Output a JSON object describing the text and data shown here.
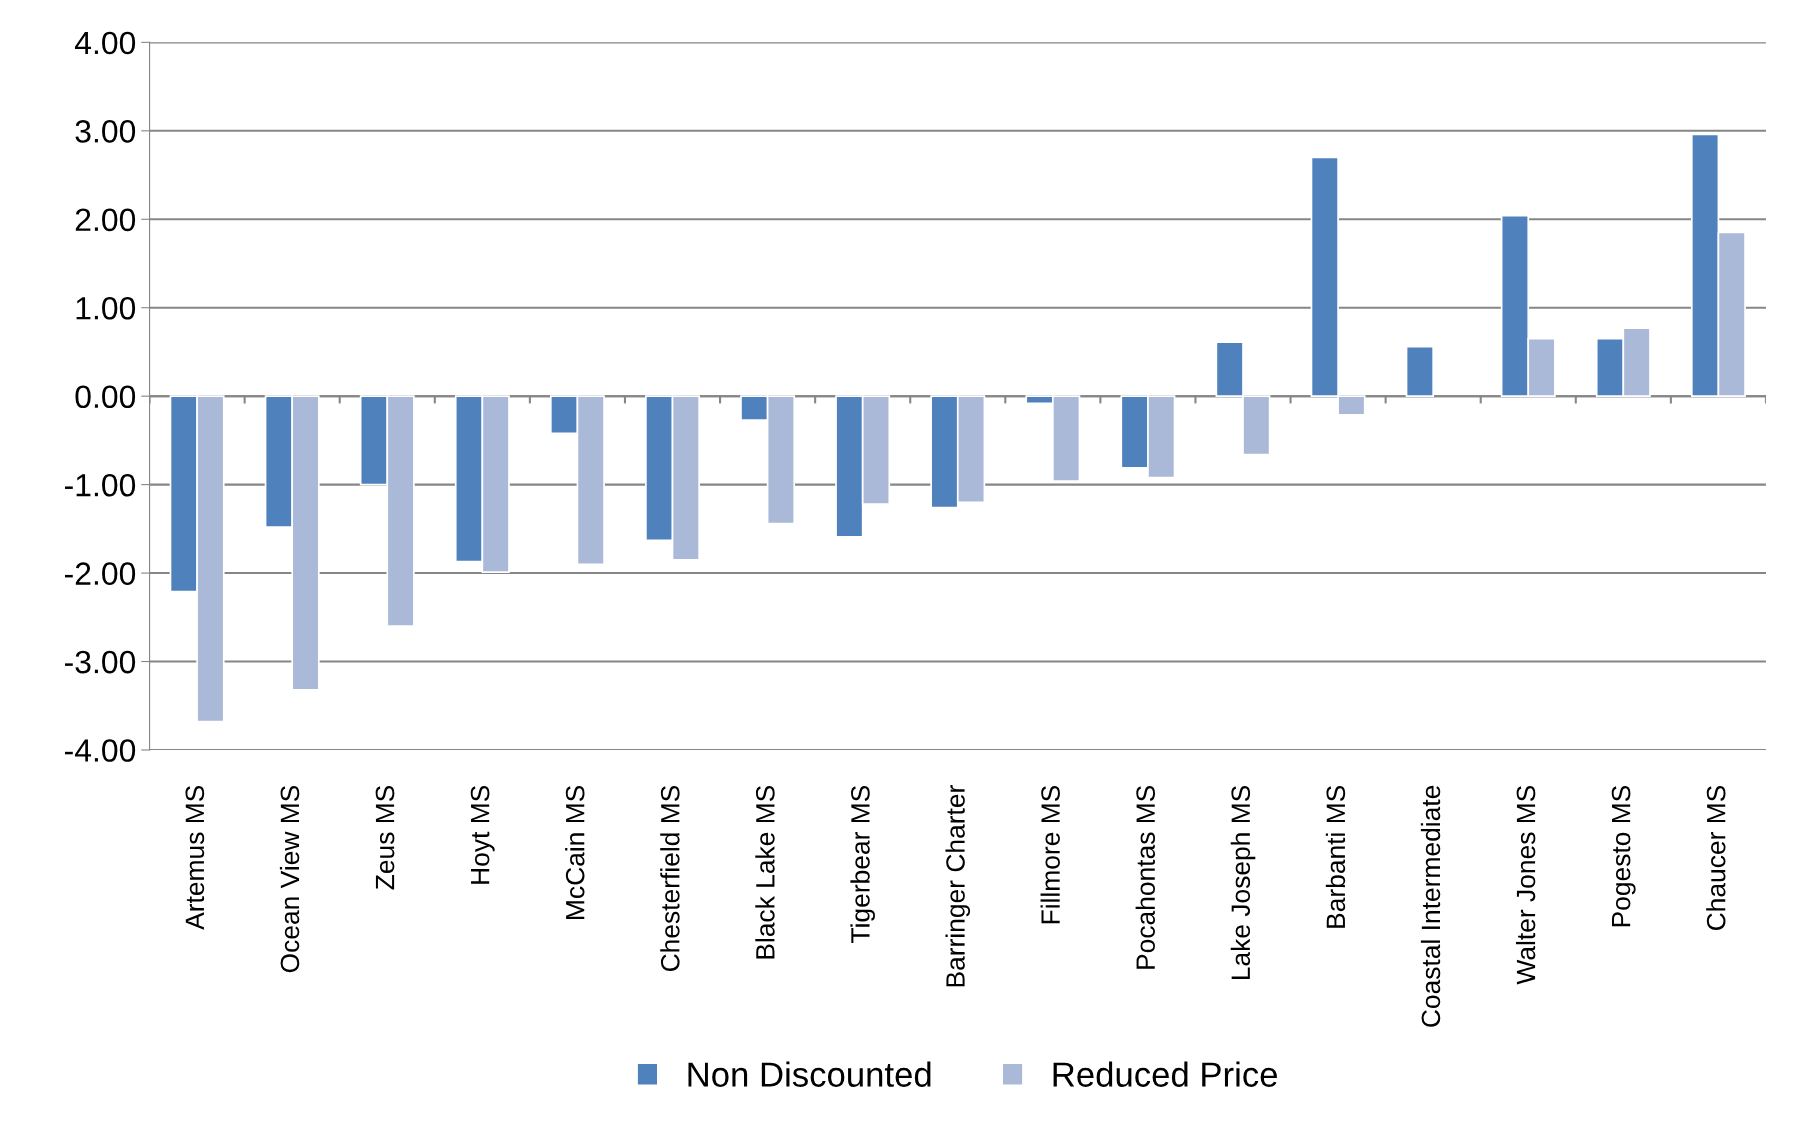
{
  "chart_data": {
    "type": "bar",
    "categories": [
      "Artemus MS",
      "Ocean View MS",
      "Zeus MS",
      "Hoyt MS",
      "McCain MS",
      "Chesterfield MS",
      "Black Lake MS",
      "Tigerbear MS",
      "Barringer Charter",
      "Fillmore MS",
      "Pocahontas MS",
      "Lake Joseph MS",
      "Barbanti MS",
      "Coastal Intermediate",
      "Walter Jones MS",
      "Pogesto MS",
      "Chaucer MS"
    ],
    "series": [
      {
        "name": "Non Discounted",
        "color": "#4f81bd",
        "values": [
          -2.21,
          -1.48,
          -1.0,
          -1.87,
          -0.42,
          -1.63,
          -0.27,
          -1.59,
          -1.26,
          -0.08,
          -0.81,
          0.61,
          2.7,
          0.56,
          2.04,
          0.65,
          2.96
        ]
      },
      {
        "name": "Reduced Price",
        "color": "#aab9d8",
        "values": [
          -3.68,
          -3.32,
          -2.6,
          -1.99,
          -1.9,
          -1.85,
          -1.44,
          -1.22,
          -1.2,
          -0.96,
          -0.92,
          -0.66,
          -0.21,
          null,
          0.65,
          0.77,
          1.85
        ]
      }
    ],
    "ylim": [
      -4,
      4
    ],
    "yticks": [
      {
        "value": -4,
        "label": "-4.00"
      },
      {
        "value": -3,
        "label": "-3.00"
      },
      {
        "value": -2,
        "label": "-2.00"
      },
      {
        "value": -1,
        "label": "-1.00"
      },
      {
        "value": 0,
        "label": "0.00"
      },
      {
        "value": 1,
        "label": "1.00"
      },
      {
        "value": 2,
        "label": "2.00"
      },
      {
        "value": 3,
        "label": "3.00"
      },
      {
        "value": 4,
        "label": "4.00"
      }
    ],
    "grid": "y",
    "legend": "bottom"
  }
}
